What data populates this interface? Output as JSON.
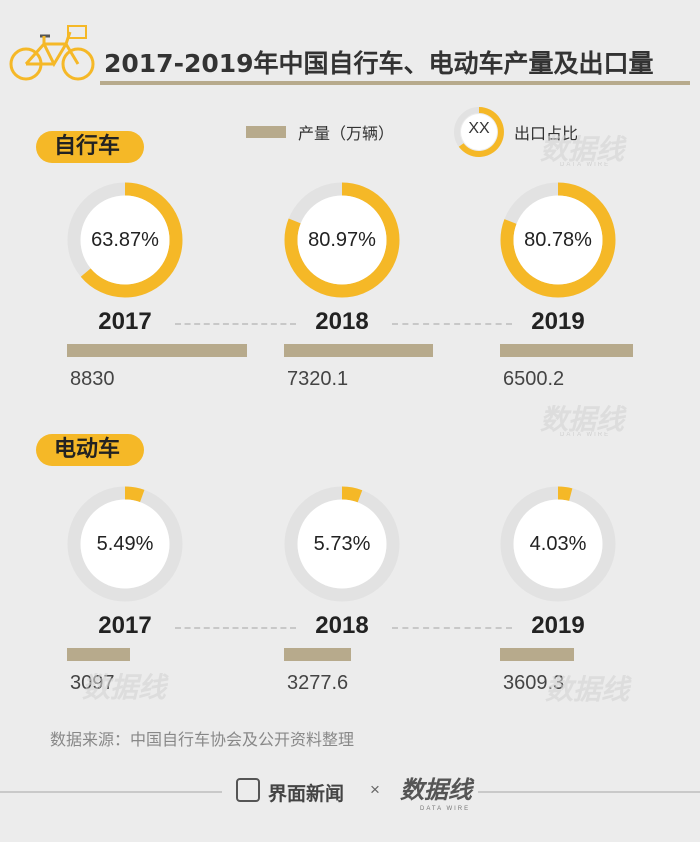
{
  "header": {
    "title": "2017-2019年中国自行车、电动车产量及出口量"
  },
  "legend": {
    "production_label": "产量（万辆）",
    "ring_sample": "XX",
    "export_label": "出口占比"
  },
  "sections": [
    {
      "label": "自行车"
    },
    {
      "label": "电动车"
    }
  ],
  "chart_data": [
    {
      "type": "bar",
      "series": [
        {
          "name": "产量（万辆）",
          "values": [
            8830,
            7320.1,
            6500.2
          ],
          "labels": [
            "8830",
            "7320.1",
            "6500.2"
          ]
        },
        {
          "name": "出口占比",
          "values": [
            63.87,
            80.97,
            80.78
          ],
          "labels": [
            "63.87%",
            "80.97%",
            "80.78%"
          ]
        }
      ],
      "categories": [
        "2017",
        "2018",
        "2019"
      ],
      "title": "自行车"
    },
    {
      "type": "bar",
      "series": [
        {
          "name": "产量（万辆）",
          "values": [
            3097,
            3277.6,
            3609.3
          ],
          "labels": [
            "3097",
            "3277.6",
            "3609.3"
          ]
        },
        {
          "name": "出口占比",
          "values": [
            5.49,
            5.73,
            4.03
          ],
          "labels": [
            "5.49%",
            "5.73%",
            "4.03%"
          ]
        }
      ],
      "categories": [
        "2017",
        "2018",
        "2019"
      ],
      "title": "电动车"
    }
  ],
  "source": "数据来源：中国自行车协会及公开资料整理",
  "footer": {
    "brand": "界面新闻",
    "times": "×",
    "partner": "数据线",
    "partner_sub": "DATA WIRE"
  },
  "colors": {
    "accent": "#f5b827",
    "bar": "#b7aa8c",
    "ring_track": "#e2e2e2",
    "background": "#ececec"
  },
  "watermark": "数据线"
}
